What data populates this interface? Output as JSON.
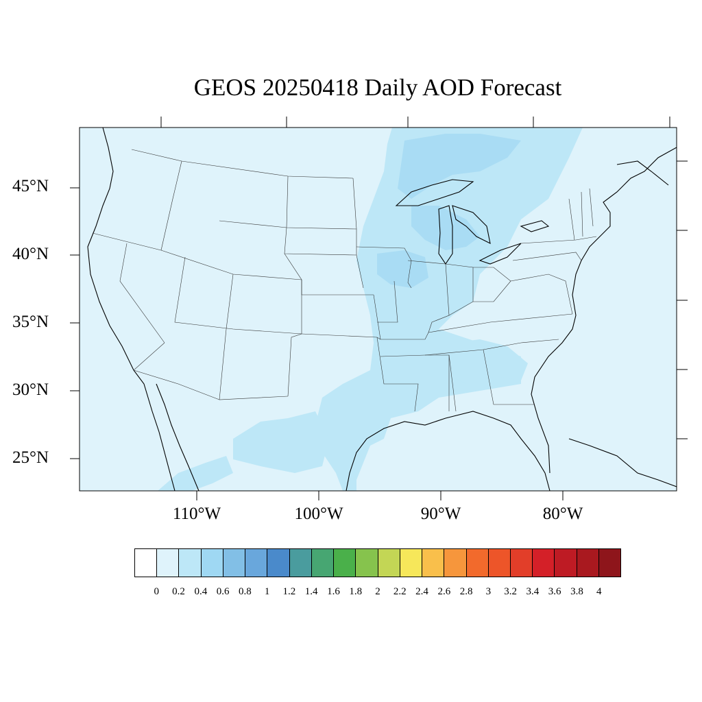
{
  "title": "GEOS 20250418 Daily AOD Forecast",
  "map": {
    "region": "Contiguous United States",
    "background_color": "#dff3fb",
    "lat_labels": [
      "45°N",
      "40°N",
      "35°N",
      "30°N",
      "25°N"
    ],
    "lon_labels": [
      "110°W",
      "100°W",
      "90°W",
      "80°W"
    ]
  },
  "colorbar": {
    "colors": [
      "#ffffff",
      "#dff3fb",
      "#bde7f7",
      "#9fd8f3",
      "#82bfe6",
      "#69a7dc",
      "#4a8acb",
      "#4a9c9e",
      "#47a672",
      "#4ab04a",
      "#86c34d",
      "#c3d655",
      "#f6e75a",
      "#f9bf4b",
      "#f6963c",
      "#f26a2c",
      "#ed5529",
      "#e23e29",
      "#d42028",
      "#be1b24",
      "#a9191f",
      "#8e151b"
    ],
    "labels": [
      "0",
      "0.2",
      "0.4",
      "0.6",
      "0.8",
      "1",
      "1.2",
      "1.4",
      "1.6",
      "1.8",
      "2",
      "2.2",
      "2.4",
      "2.6",
      "2.8",
      "3",
      "3.2",
      "3.4",
      "3.6",
      "3.8",
      "4"
    ]
  }
}
